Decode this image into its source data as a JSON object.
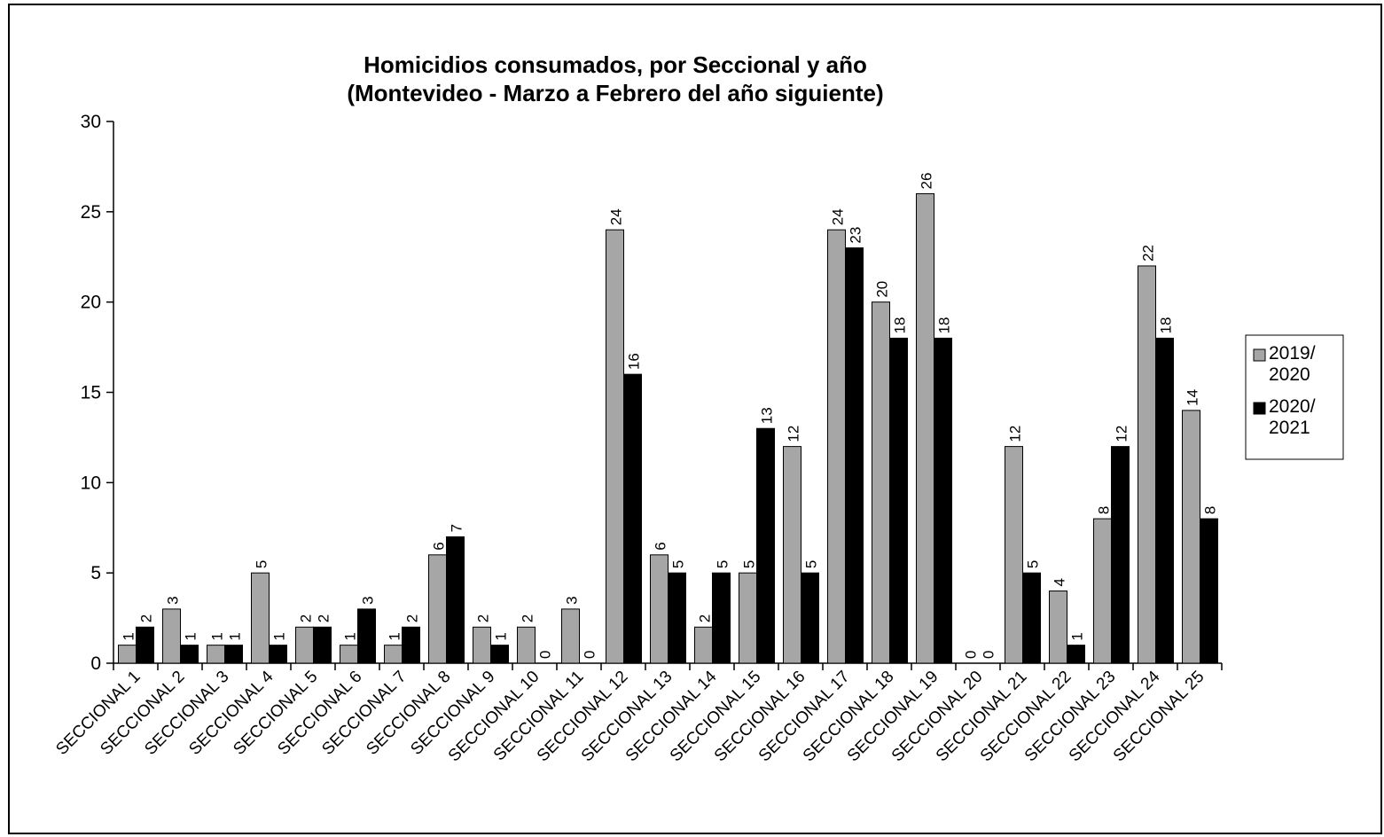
{
  "chart_data": {
    "type": "bar",
    "title": "Homicidios consumados, por Seccional y año",
    "subtitle": "(Montevideo - Marzo a Febrero del año siguiente)",
    "categories": [
      "SECCIONAL 1",
      "SECCIONAL 2",
      "SECCIONAL 3",
      "SECCIONAL 4",
      "SECCIONAL 5",
      "SECCIONAL 6",
      "SECCIONAL 7",
      "SECCIONAL 8",
      "SECCIONAL 9",
      "SECCIONAL 10",
      "SECCIONAL 11",
      "SECCIONAL 12",
      "SECCIONAL 13",
      "SECCIONAL 14",
      "SECCIONAL 15",
      "SECCIONAL 16",
      "SECCIONAL 17",
      "SECCIONAL 18",
      "SECCIONAL 19",
      "SECCIONAL 20",
      "SECCIONAL 21",
      "SECCIONAL 22",
      "SECCIONAL 23",
      "SECCIONAL 24",
      "SECCIONAL 25"
    ],
    "series": [
      {
        "name": "2019/2020",
        "color": "#a6a6a6",
        "values": [
          1,
          3,
          1,
          5,
          2,
          1,
          1,
          6,
          2,
          2,
          3,
          24,
          6,
          2,
          5,
          12,
          24,
          20,
          26,
          0,
          12,
          4,
          8,
          22,
          14
        ]
      },
      {
        "name": "2020/2021",
        "color": "#000000",
        "values": [
          2,
          1,
          1,
          1,
          2,
          3,
          2,
          7,
          1,
          0,
          0,
          16,
          5,
          5,
          13,
          5,
          23,
          18,
          18,
          0,
          5,
          1,
          12,
          18,
          8
        ]
      }
    ],
    "ylim": [
      0,
      30
    ],
    "yticks": [
      0,
      5,
      10,
      15,
      20,
      25,
      30
    ],
    "legend": "right"
  }
}
